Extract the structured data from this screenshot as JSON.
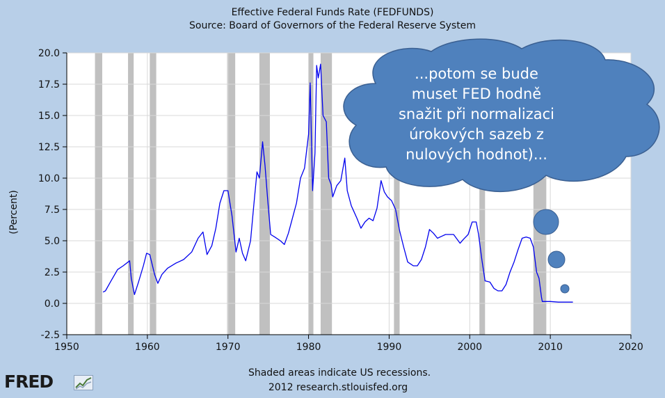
{
  "chart_data": {
    "type": "line",
    "title": "Effective Federal Funds Rate (FEDFUNDS)",
    "subtitle": "Source: Board of Governors of the Federal Reserve System",
    "ylabel": "(Percent)",
    "xlabel": "",
    "xlim": [
      1950,
      2020
    ],
    "ylim": [
      -2.5,
      20.0
    ],
    "xticks": [
      "1950",
      "1960",
      "1970",
      "1980",
      "1990",
      "2000",
      "2010",
      "2020"
    ],
    "yticks": [
      "20.0",
      "17.5",
      "15.0",
      "12.5",
      "10.0",
      "7.5",
      "5.0",
      "2.5",
      "0.0",
      "-2.5"
    ],
    "grid": true,
    "recessions": [
      [
        1953.5,
        1954.4
      ],
      [
        1957.6,
        1958.3
      ],
      [
        1960.3,
        1961.1
      ],
      [
        1969.9,
        1970.9
      ],
      [
        1973.9,
        1975.2
      ],
      [
        1980.0,
        1980.6
      ],
      [
        1981.5,
        1982.9
      ],
      [
        1990.6,
        1991.3
      ],
      [
        2001.2,
        2001.9
      ],
      [
        2007.9,
        2009.5
      ]
    ],
    "series": [
      {
        "color": "#0000ee",
        "x": [
          1954.5,
          1954.8,
          1955.5,
          1956.3,
          1957.0,
          1957.8,
          1958.0,
          1958.4,
          1958.9,
          1959.5,
          1959.9,
          1960.3,
          1960.9,
          1961.3,
          1961.8,
          1962.5,
          1963.5,
          1964.5,
          1965.5,
          1966.3,
          1966.9,
          1967.4,
          1968.0,
          1968.5,
          1969.0,
          1969.5,
          1970.0,
          1970.5,
          1971.0,
          1971.4,
          1971.8,
          1972.2,
          1972.8,
          1973.2,
          1973.6,
          1973.9,
          1974.3,
          1974.6,
          1974.9,
          1975.3,
          1975.8,
          1976.5,
          1977.0,
          1977.5,
          1978.0,
          1978.5,
          1979.0,
          1979.5,
          1980.0,
          1980.2,
          1980.5,
          1980.8,
          1981.0,
          1981.2,
          1981.5,
          1981.8,
          1982.2,
          1982.5,
          1982.8,
          1983.0,
          1983.5,
          1984.0,
          1984.5,
          1984.8,
          1985.3,
          1986.0,
          1986.5,
          1987.0,
          1987.5,
          1988.0,
          1988.5,
          1989.0,
          1989.4,
          1989.8,
          1990.3,
          1990.8,
          1991.3,
          1991.8,
          1992.3,
          1993.0,
          1993.5,
          1994.0,
          1994.5,
          1995.0,
          1995.5,
          1996.0,
          1997.0,
          1998.0,
          1998.8,
          1999.2,
          1999.8,
          2000.3,
          2000.8,
          2001.1,
          2001.5,
          2001.9,
          2002.5,
          2003.0,
          2003.5,
          2004.0,
          2004.5,
          2005.0,
          2005.5,
          2006.0,
          2006.5,
          2007.0,
          2007.5,
          2007.9,
          2008.3,
          2008.6,
          2008.9,
          2009.0,
          2010.0,
          2011.0,
          2012.0,
          2012.8
        ],
        "values": [
          0.9,
          1.0,
          1.8,
          2.7,
          3.0,
          3.4,
          2.0,
          0.7,
          1.7,
          3.0,
          4.0,
          3.9,
          2.3,
          1.6,
          2.3,
          2.8,
          3.2,
          3.5,
          4.1,
          5.2,
          5.7,
          3.9,
          4.6,
          6.0,
          8.0,
          9.0,
          9.0,
          7.0,
          4.1,
          5.2,
          4.0,
          3.4,
          5.0,
          7.8,
          10.5,
          10.0,
          12.9,
          11.0,
          8.5,
          5.5,
          5.3,
          5.0,
          4.7,
          5.6,
          6.8,
          8.0,
          10.0,
          10.8,
          13.5,
          17.6,
          9.0,
          12.0,
          19.0,
          18.0,
          19.1,
          15.0,
          14.5,
          10.0,
          9.5,
          8.5,
          9.4,
          9.8,
          11.6,
          9.0,
          7.8,
          6.8,
          6.0,
          6.5,
          6.8,
          6.6,
          7.6,
          9.8,
          8.9,
          8.5,
          8.2,
          7.5,
          5.8,
          4.5,
          3.3,
          3.0,
          3.0,
          3.5,
          4.5,
          5.9,
          5.6,
          5.2,
          5.5,
          5.5,
          4.8,
          5.1,
          5.5,
          6.5,
          6.5,
          5.5,
          3.5,
          1.8,
          1.7,
          1.2,
          1.0,
          1.0,
          1.5,
          2.5,
          3.3,
          4.3,
          5.2,
          5.3,
          5.2,
          4.5,
          2.5,
          2.0,
          0.5,
          0.15,
          0.15,
          0.1,
          0.1,
          0.1
        ]
      }
    ],
    "footer_line1": "Shaded areas indicate US recessions.",
    "footer_line2": "2012 research.stlouisfed.org"
  },
  "bubble": {
    "text": "...potom se bude muset FED hodně snažit při normalizaci úrokových sazeb z nulových hodnot)...",
    "color": "#4f81bd"
  },
  "logo": {
    "text": "FRED",
    "icon": "chart-line-icon"
  }
}
